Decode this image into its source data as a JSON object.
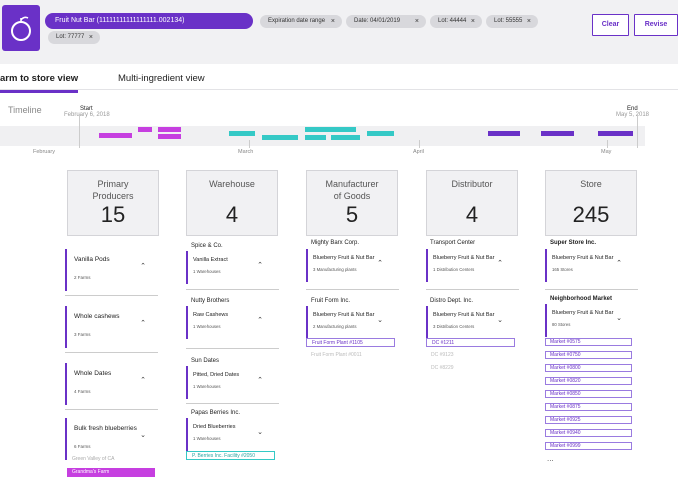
{
  "header": {
    "product": "Fruit Nut Bar (11111111111111111.002134)",
    "chips": [
      "Expiration date range",
      "Date: 04/01/2019",
      "Lot: 44444",
      "Lot: 55555",
      "Lot: 77777"
    ],
    "clear_label": "Clear",
    "revise_label": "Revise"
  },
  "tabs": [
    "arm to store view",
    "Multi-ingredient view"
  ],
  "timeline": {
    "label": "Timeline",
    "start": "Start",
    "start_date": "February 6, 2018",
    "end": "End",
    "end_date": "May 5, 2018",
    "months": [
      "February",
      "March",
      "April",
      "May"
    ]
  },
  "columns": [
    {
      "title_l1": "Primary",
      "title_l2": "Producers",
      "count": "15"
    },
    {
      "title_l1": "Warehouse",
      "title_l2": "",
      "count": "4"
    },
    {
      "title_l1": "Manufacturer",
      "title_l2": "of Goods",
      "count": "5"
    },
    {
      "title_l1": "Distributor",
      "title_l2": "",
      "count": "4"
    },
    {
      "title_l1": "Store",
      "title_l2": "",
      "count": "245"
    }
  ],
  "producers": [
    {
      "name": "Vanilla Pods",
      "sub": "2 Farms"
    },
    {
      "name": "Whole cashews",
      "sub": "3 Farms"
    },
    {
      "name": "Whole Dates",
      "sub": "4 Farms"
    },
    {
      "name": "Bulk fresh blueberries",
      "sub": "6 Farms"
    }
  ],
  "producer_farms": [
    "Green Valley of CA",
    "Grandma's Farm"
  ],
  "warehouses": [
    {
      "group": "Spice & Co.",
      "name": "Vanilla Extract",
      "sub": "1 Warehouses"
    },
    {
      "group": "Nutty Brothers",
      "name": "Raw Cashews",
      "sub": "1 Warehouses"
    },
    {
      "group": "Sun Dates",
      "name": "Pitted, Dried Dates",
      "sub": "1 Warehouses"
    },
    {
      "group": "Papas Berries Inc.",
      "name": "Dried Blueberries",
      "sub": "1 Warehouses"
    }
  ],
  "warehouse_facility": "P. Berries Inc. Facility #2050",
  "manufacturers": [
    {
      "group": "Mighty Barx Corp.",
      "name": "Blueberry Fruit & Nut Bar",
      "sub": "3 Manufacturing plants"
    },
    {
      "group": "Fruit Form Inc.",
      "name": "Blueberry Fruit & Nut Bar",
      "sub": "2 Manufacturing plants"
    }
  ],
  "manufacturer_plants": [
    "Fruit Form Plant #1105",
    "Fruit Form Plant #0011"
  ],
  "distributors": [
    {
      "group": "Transport Center",
      "name": "Blueberry Fruit & Nut Bar",
      "sub": "1 Distribution Centers"
    },
    {
      "group": "Distro Dept. Inc.",
      "name": "Blueberry Fruit & Nut Bar",
      "sub": "3 Distribution Centers"
    }
  ],
  "distribution_centers": [
    "DC #1211",
    "DC #9123",
    "DC #8229"
  ],
  "stores": [
    {
      "group": "Super Store Inc.",
      "name": "Blueberry Fruit & Nut Bar",
      "sub": "165 Stores"
    },
    {
      "group": "Neighborhood Market",
      "name": "Blueberry Fruit & Nut Bar",
      "sub": "80 Stores"
    }
  ],
  "markets": [
    "Market #0575",
    "Market #0750",
    "Market #0800",
    "Market #0820",
    "Market #0850",
    "Market #0875",
    "Market #0925",
    "Market #0940",
    "Market #0999"
  ],
  "more": "...",
  "colors": {
    "accent": "#6a31c7",
    "teal": "#35c9c6",
    "magenta": "#c63fe0"
  }
}
